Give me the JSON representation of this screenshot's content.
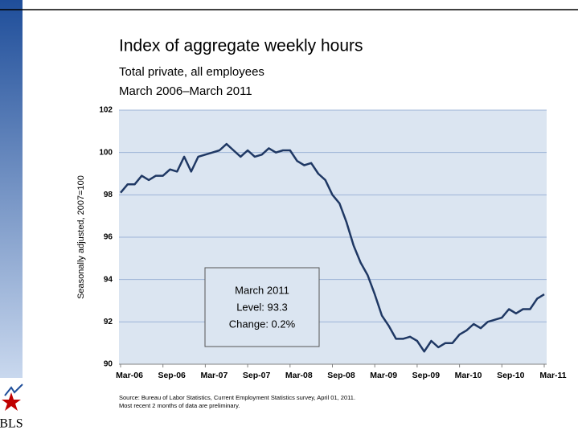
{
  "chart_data": {
    "type": "line",
    "title": "Index of aggregate weekly hours",
    "subtitle": [
      "Total private, all employees",
      "March 2006–March 2011"
    ],
    "y_label": "Seasonally adjusted, 2007=100",
    "annotation": [
      "March 2011",
      "Level: 93.3",
      "Change: 0.2%"
    ],
    "source": [
      "Source: Bureau of Labor Statistics, Current Employment Statistics survey, April 01, 2011.",
      "Most recent 2 months of data are preliminary."
    ],
    "logo_text": "BLS",
    "categories": [
      "Mar-06",
      null,
      null,
      null,
      null,
      null,
      "Sep-06",
      null,
      null,
      null,
      null,
      null,
      "Mar-07",
      null,
      null,
      null,
      null,
      null,
      "Sep-07",
      null,
      null,
      null,
      null,
      null,
      "Mar-08",
      null,
      null,
      null,
      null,
      null,
      "Sep-08",
      null,
      null,
      null,
      null,
      null,
      "Mar-09",
      null,
      null,
      null,
      null,
      null,
      "Sep-09",
      null,
      null,
      null,
      null,
      null,
      "Mar-10",
      null,
      null,
      null,
      null,
      null,
      "Sep-10",
      null,
      null,
      null,
      null,
      null,
      "Mar-11"
    ],
    "series": [
      {
        "name": "Index of aggregate weekly hours",
        "color": "#1f3864",
        "values": [
          98.1,
          98.5,
          98.5,
          98.9,
          98.7,
          98.9,
          98.9,
          99.2,
          99.1,
          99.8,
          99.1,
          99.8,
          99.9,
          100.0,
          100.1,
          100.4,
          100.1,
          99.8,
          100.1,
          99.8,
          99.9,
          100.2,
          100.0,
          100.1,
          100.1,
          99.6,
          99.4,
          99.5,
          99.0,
          98.7,
          98.0,
          97.6,
          96.7,
          95.6,
          94.8,
          94.2,
          93.3,
          92.3,
          91.8,
          91.2,
          91.2,
          91.3,
          91.1,
          90.6,
          91.1,
          90.8,
          91.0,
          91.0,
          91.4,
          91.6,
          91.9,
          91.7,
          92.0,
          92.1,
          92.2,
          92.6,
          92.4,
          92.6,
          92.6,
          93.1,
          93.3
        ]
      }
    ],
    "ylim": [
      90,
      102
    ],
    "yticks": [
      90,
      92,
      94,
      96,
      98,
      100,
      102
    ],
    "grid": true
  }
}
